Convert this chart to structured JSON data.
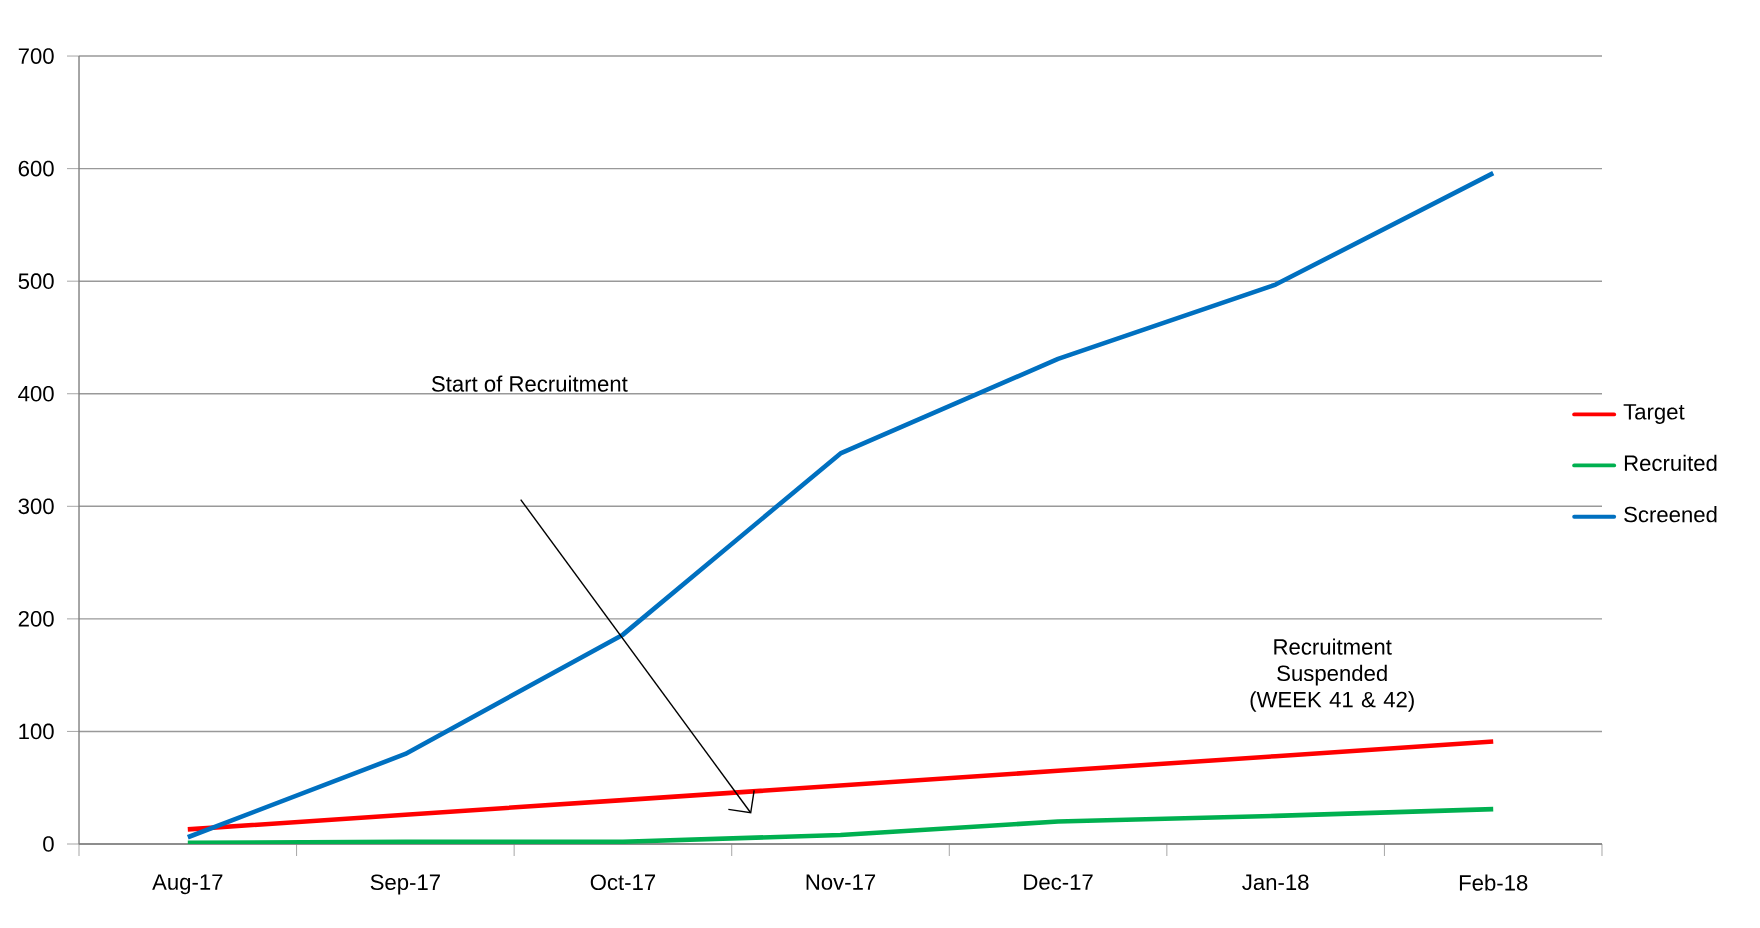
{
  "chart_data": {
    "type": "line",
    "categories": [
      "Aug-17",
      "Sep-17",
      "Oct-17",
      "Nov-17",
      "Dec-17",
      "Jan-18",
      "Feb-18"
    ],
    "series": [
      {
        "name": "Target",
        "color": "#ff0000",
        "values": [
          13,
          26,
          39,
          52,
          65,
          78,
          91
        ]
      },
      {
        "name": "Recruited",
        "color": "#00b050",
        "values": [
          1,
          2,
          2,
          8,
          20,
          25,
          31
        ]
      },
      {
        "name": "Screened",
        "color": "#0070c0",
        "values": [
          6,
          80,
          186,
          347,
          431,
          497,
          596
        ]
      }
    ],
    "ylim": [
      0,
      700
    ],
    "yticks": [
      0,
      100,
      200,
      300,
      400,
      500,
      600,
      700
    ],
    "grid": "y",
    "legend": "right",
    "annotations": [
      "Start of Recruitment",
      "Recruitment Suspended (WEEK 41 & 42)"
    ]
  }
}
